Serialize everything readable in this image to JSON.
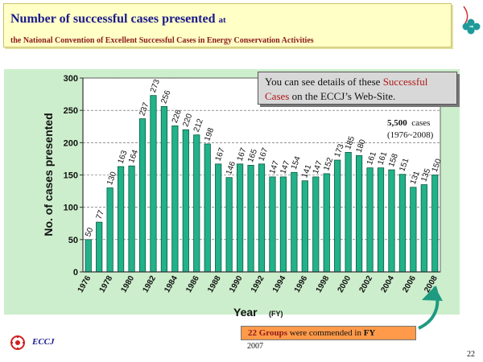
{
  "header": {
    "title": "Number of successful cases presented",
    "title_at": "at",
    "subtitle": "the National Convention of Excellent Successful Cases in Energy Conservation Activities"
  },
  "callout": {
    "text_1": "You can see details of these ",
    "highlight_1": "Successful",
    "highlight_2": "Cases",
    "text_2": " on the ECCJ’s Web-Site."
  },
  "total": {
    "count": "5,500",
    "unit": "cases",
    "range": "(1976~2008)"
  },
  "groups_note": {
    "count": "22 Groups",
    "text": " were commended in ",
    "fy": "FY",
    "year": "2007"
  },
  "footer": {
    "org": "ECCJ",
    "page": "22"
  },
  "colors": {
    "bar_fill": "#21b289",
    "bar_stroke": "#0b5a40",
    "panel_bg": "#cceecc",
    "title_bg": "#ffffc6",
    "title_color": "#1a1a8c",
    "accent_red": "#b01818"
  },
  "chart_data": {
    "type": "bar",
    "x": [
      1976,
      1977,
      1978,
      1979,
      1980,
      1981,
      1982,
      1983,
      1984,
      1985,
      1986,
      1987,
      1988,
      1989,
      1990,
      1991,
      1992,
      1993,
      1994,
      1995,
      1996,
      1997,
      1998,
      1999,
      2000,
      2001,
      2002,
      2003,
      2004,
      2005,
      2006,
      2007,
      2008
    ],
    "values": [
      50,
      77,
      130,
      163,
      164,
      237,
      273,
      256,
      226,
      220,
      212,
      198,
      167,
      146,
      167,
      165,
      167,
      147,
      147,
      154,
      141,
      147,
      152,
      173,
      185,
      180,
      161,
      161,
      158,
      151,
      131,
      135,
      150
    ],
    "tick_labels": [
      "1976",
      "1978",
      "1980",
      "1982",
      "1984",
      "1986",
      "1988",
      "1990",
      "1992",
      "1994",
      "1996",
      "1998",
      "2000",
      "2002",
      "2004",
      "2006",
      "2008"
    ],
    "ylim": [
      0,
      300
    ],
    "yticks": [
      0,
      50,
      100,
      150,
      200,
      250,
      300
    ],
    "ylabel": "No. of cases presented",
    "xlabel": "Year",
    "xlabel_unit": "(FY)",
    "grid": true
  }
}
